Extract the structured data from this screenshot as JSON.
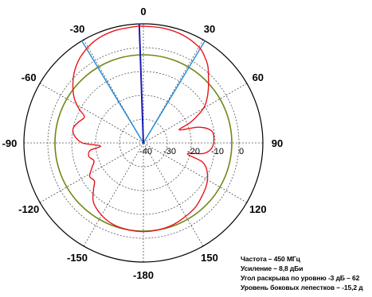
{
  "chart_data": {
    "type": "polar",
    "angle_labels": [
      "0",
      "30",
      "60",
      "90",
      "120",
      "150",
      "-180",
      "-150",
      "-120",
      "-90",
      "-60",
      "-30"
    ],
    "ring_labels": [
      "-40",
      "-30",
      "-20",
      "-10",
      "0"
    ],
    "r_range_db": [
      -40,
      10
    ],
    "ring_values_db": [
      -30,
      -20,
      -10,
      0
    ],
    "grid": true,
    "colors": {
      "pattern": "#e8141c",
      "level_circle": "#6a8a14",
      "beamwidth_lines": "#1e8ad6",
      "main_direction": "#1b1bb8",
      "outer_circle": "#000000",
      "grid": "#555555"
    },
    "level_circle_db": -3,
    "beamwidth_line_angles_deg": [
      -31,
      31
    ],
    "main_direction_angle_deg": -2,
    "series": [
      {
        "values": [
          {
            "angle": 0,
            "db": 9.0
          },
          {
            "angle": 10,
            "db": 8.9
          },
          {
            "angle": 20,
            "db": 8.2
          },
          {
            "angle": 30,
            "db": 6.5
          },
          {
            "angle": 35,
            "db": 4.5
          },
          {
            "angle": 40,
            "db": 2.0
          },
          {
            "angle": 45,
            "db": -1.5
          },
          {
            "angle": 50,
            "db": -4.5
          },
          {
            "angle": 55,
            "db": -7.5
          },
          {
            "angle": 60,
            "db": -11.0
          },
          {
            "angle": 66,
            "db": -18.0
          },
          {
            "angle": 70,
            "db": -24.0
          },
          {
            "angle": 74,
            "db": -16.0
          },
          {
            "angle": 80,
            "db": -11.0
          },
          {
            "angle": 88,
            "db": -10.5
          },
          {
            "angle": 95,
            "db": -11.5
          },
          {
            "angle": 100,
            "db": -14.5
          },
          {
            "angle": 104,
            "db": -21.0
          },
          {
            "angle": 108,
            "db": -14.0
          },
          {
            "angle": 115,
            "db": -10.5
          },
          {
            "angle": 125,
            "db": -8.0
          },
          {
            "angle": 140,
            "db": -5.5
          },
          {
            "angle": 150,
            "db": -4.5
          },
          {
            "angle": 160,
            "db": -3.5
          },
          {
            "angle": 170,
            "db": -3.0
          },
          {
            "angle": 180,
            "db": -2.8
          },
          {
            "angle": -170,
            "db": -3.0
          },
          {
            "angle": -160,
            "db": -3.5
          },
          {
            "angle": -150,
            "db": -5.0
          },
          {
            "angle": -140,
            "db": -7.5
          },
          {
            "angle": -133,
            "db": -11.5
          },
          {
            "angle": -128,
            "db": -14.0
          },
          {
            "angle": -122,
            "db": -13.5
          },
          {
            "angle": -116,
            "db": -16.0
          },
          {
            "angle": -110,
            "db": -18.0
          },
          {
            "angle": -104,
            "db": -16.5
          },
          {
            "angle": -98,
            "db": -17.5
          },
          {
            "angle": -94,
            "db": -22.0
          },
          {
            "angle": -90,
            "db": -14.5
          },
          {
            "angle": -84,
            "db": -11.0
          },
          {
            "angle": -78,
            "db": -10.0
          },
          {
            "angle": -72,
            "db": -11.5
          },
          {
            "angle": -66,
            "db": -13.0
          },
          {
            "angle": -62,
            "db": -9.5
          },
          {
            "angle": -57,
            "db": -5.5
          },
          {
            "angle": -50,
            "db": -1.5
          },
          {
            "angle": -43,
            "db": 2.0
          },
          {
            "angle": -35,
            "db": 5.0
          },
          {
            "angle": -25,
            "db": 7.5
          },
          {
            "angle": -15,
            "db": 8.6
          },
          {
            "angle": -5,
            "db": 8.9
          },
          {
            "angle": 0,
            "db": 9.0
          }
        ]
      }
    ]
  },
  "info": {
    "frequency": "Частота – 450 МГц",
    "gain": "Усиление – 8,8 дБи",
    "beamwidth": "Угол раскрыва по уровню -3 дБ – 62",
    "sidelobes": "Уровень боковых лепестков – -15,2 д"
  }
}
